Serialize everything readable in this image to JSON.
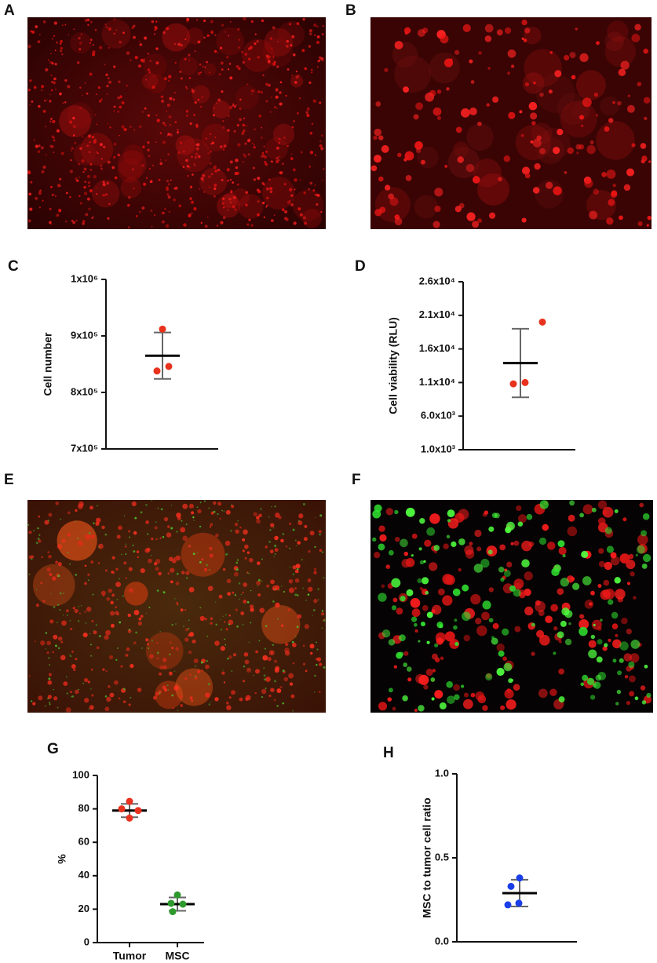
{
  "figure": {
    "images": [
      {
        "label": "A"
      },
      {
        "label": "B"
      },
      {
        "label": "E"
      },
      {
        "label": "F"
      }
    ]
  },
  "chart_data": [
    {
      "type": "dot",
      "panel": "C",
      "y_label": "Cell number",
      "ylim": [
        700000,
        1000000
      ],
      "yticks": [
        {
          "value": 700000,
          "label": "7x10⁵"
        },
        {
          "value": 800000,
          "label": "8x10⁵"
        },
        {
          "value": 900000,
          "label": "9x10⁵"
        },
        {
          "value": 1000000,
          "label": "1x10⁶"
        }
      ],
      "groups": [
        {
          "color": "#e8321e",
          "values": [
            912000,
            846000,
            838000
          ],
          "mean": 865000,
          "sd": 41000
        }
      ]
    },
    {
      "type": "dot",
      "panel": "D",
      "y_label": "Cell viability (RLU)",
      "ylim": [
        1000,
        26000
      ],
      "yticks": [
        {
          "value": 1000,
          "label": "1.0x10³"
        },
        {
          "value": 6000,
          "label": "6.0x10³"
        },
        {
          "value": 11000,
          "label": "1.1x10⁴"
        },
        {
          "value": 16000,
          "label": "1.6x10⁴"
        },
        {
          "value": 21000,
          "label": "2.1x10⁴"
        },
        {
          "value": 26000,
          "label": "2.6x10⁴"
        }
      ],
      "groups": [
        {
          "color": "#e8321e",
          "values": [
            20000,
            11000,
            10800
          ],
          "mean": 13900,
          "sd": 5100
        }
      ]
    },
    {
      "type": "dot",
      "panel": "G",
      "y_label": "%",
      "ylim": [
        0,
        100
      ],
      "yticks": [
        0,
        20,
        40,
        60,
        80,
        100
      ],
      "groups": [
        {
          "category": "Tumor",
          "color": "#e8321e",
          "values": [
            84.5,
            80,
            79,
            74.5
          ],
          "mean": 79,
          "sd": 4
        },
        {
          "category": "MSC",
          "color": "#2e9a2e",
          "values": [
            28.5,
            23.5,
            23,
            18.5
          ],
          "mean": 23,
          "sd": 4
        }
      ]
    },
    {
      "type": "dot",
      "panel": "H",
      "y_label": "MSC to tumor cell ratio",
      "ylim": [
        0,
        1
      ],
      "yticks": [
        {
          "value": 0,
          "label": "0.0"
        },
        {
          "value": 0.5,
          "label": "0.5"
        },
        {
          "value": 1,
          "label": "1.0"
        }
      ],
      "groups": [
        {
          "color": "#1a3ee8",
          "values": [
            0.38,
            0.33,
            0.23,
            0.22
          ],
          "mean": 0.29,
          "sd": 0.08
        }
      ]
    }
  ]
}
